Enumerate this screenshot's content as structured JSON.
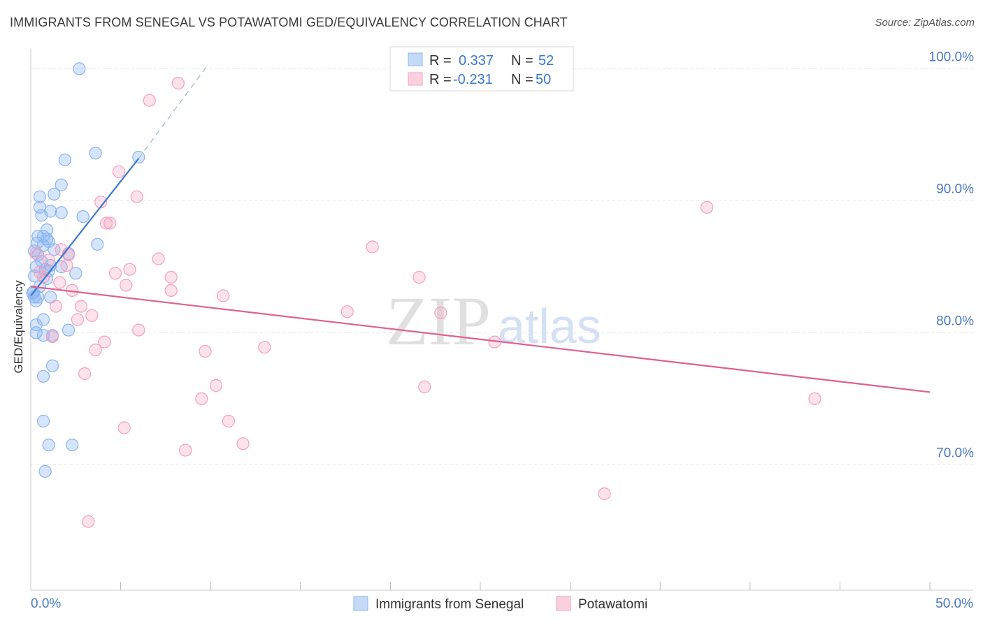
{
  "chart_data": {
    "type": "scatter",
    "title": "IMMIGRANTS FROM SENEGAL VS POTAWATOMI GED/EQUIVALENCY CORRELATION CHART",
    "source": "Source: ZipAtlas.com",
    "ylabel": "GED/Equivalency",
    "xlabel": "",
    "xlim": [
      0,
      50
    ],
    "ylim": [
      60.5,
      101.5
    ],
    "x_ticks": [
      "0.0%",
      "50.0%"
    ],
    "y_ticks": [
      {
        "value": 100,
        "label": "100.0%"
      },
      {
        "value": 90,
        "label": "90.0%"
      },
      {
        "value": 80,
        "label": "80.0%"
      },
      {
        "value": 70,
        "label": "70.0%"
      }
    ],
    "watermark": {
      "zip": "ZIP",
      "atlas": "atlas"
    },
    "legend": {
      "r_label": "R =",
      "n_label": "N =",
      "entries": [
        {
          "name": "Immigrants from Senegal",
          "r": "0.337",
          "n": "52"
        },
        {
          "name": "Potawatomi",
          "r": "-0.231",
          "n": "50"
        }
      ]
    },
    "series": [
      {
        "name": "Immigrants from Senegal",
        "color": "#8ab4f0",
        "line_color": "#3a78d0",
        "trend": {
          "x0": 0.0,
          "y0": 82.8,
          "x1": 6.0,
          "y1": 93.2,
          "x_ext": 9.8,
          "y_ext": 100.2
        },
        "points": [
          [
            2.7,
            100.0
          ],
          [
            3.6,
            93.6
          ],
          [
            6.0,
            93.3
          ],
          [
            1.9,
            93.1
          ],
          [
            1.7,
            91.2
          ],
          [
            1.3,
            90.5
          ],
          [
            0.5,
            90.3
          ],
          [
            0.5,
            89.5
          ],
          [
            1.1,
            89.2
          ],
          [
            1.7,
            89.1
          ],
          [
            0.6,
            88.9
          ],
          [
            2.9,
            88.8
          ],
          [
            0.9,
            87.8
          ],
          [
            0.4,
            87.3
          ],
          [
            0.7,
            87.3
          ],
          [
            0.9,
            87.1
          ],
          [
            1.0,
            86.9
          ],
          [
            3.7,
            86.7
          ],
          [
            0.2,
            86.2
          ],
          [
            0.7,
            86.6
          ],
          [
            2.1,
            86.0
          ],
          [
            0.4,
            85.9
          ],
          [
            1.1,
            85.1
          ],
          [
            0.3,
            85.0
          ],
          [
            1.7,
            85.0
          ],
          [
            1.0,
            84.7
          ],
          [
            2.5,
            84.5
          ],
          [
            0.9,
            84.1
          ],
          [
            0.2,
            84.3
          ],
          [
            0.5,
            83.5
          ],
          [
            0.1,
            83.0
          ],
          [
            0.2,
            82.7
          ],
          [
            0.4,
            82.7
          ],
          [
            1.1,
            82.7
          ],
          [
            0.3,
            82.4
          ],
          [
            0.7,
            81.0
          ],
          [
            2.1,
            80.2
          ],
          [
            0.3,
            80.0
          ],
          [
            0.7,
            79.8
          ],
          [
            1.2,
            79.8
          ],
          [
            0.3,
            80.6
          ],
          [
            1.2,
            77.5
          ],
          [
            0.7,
            76.7
          ],
          [
            0.7,
            73.3
          ],
          [
            1.0,
            71.5
          ],
          [
            2.3,
            71.5
          ],
          [
            0.8,
            69.5
          ],
          [
            0.15,
            83.1
          ],
          [
            0.6,
            85.4
          ],
          [
            1.3,
            86.3
          ],
          [
            0.35,
            86.8
          ],
          [
            0.8,
            84.8
          ]
        ]
      },
      {
        "name": "Potawatomi",
        "color": "#f4a0bc",
        "line_color": "#e06090",
        "trend": {
          "x0": 0.0,
          "y0": 83.5,
          "x1": 50.0,
          "y1": 75.5
        },
        "points": [
          [
            8.2,
            98.9
          ],
          [
            6.6,
            97.6
          ],
          [
            4.9,
            92.2
          ],
          [
            5.9,
            90.3
          ],
          [
            3.9,
            89.9
          ],
          [
            4.2,
            88.3
          ],
          [
            4.4,
            88.3
          ],
          [
            37.6,
            89.5
          ],
          [
            19.0,
            86.5
          ],
          [
            1.7,
            86.3
          ],
          [
            0.3,
            86.0
          ],
          [
            2.1,
            85.9
          ],
          [
            7.1,
            85.6
          ],
          [
            2.0,
            85.1
          ],
          [
            5.5,
            84.8
          ],
          [
            4.7,
            84.5
          ],
          [
            7.8,
            84.2
          ],
          [
            21.6,
            84.2
          ],
          [
            0.7,
            84.2
          ],
          [
            1.6,
            83.8
          ],
          [
            5.3,
            83.6
          ],
          [
            2.3,
            83.2
          ],
          [
            7.8,
            83.2
          ],
          [
            10.7,
            82.8
          ],
          [
            2.8,
            82.0
          ],
          [
            1.4,
            82.0
          ],
          [
            17.6,
            81.6
          ],
          [
            22.8,
            81.5
          ],
          [
            3.4,
            81.3
          ],
          [
            2.6,
            81.0
          ],
          [
            6.0,
            80.2
          ],
          [
            1.2,
            79.7
          ],
          [
            4.1,
            79.3
          ],
          [
            25.8,
            79.3
          ],
          [
            3.6,
            78.7
          ],
          [
            13.0,
            78.9
          ],
          [
            9.7,
            78.6
          ],
          [
            3.0,
            76.9
          ],
          [
            10.3,
            76.0
          ],
          [
            21.9,
            75.9
          ],
          [
            43.6,
            75.0
          ],
          [
            9.5,
            75.0
          ],
          [
            11.0,
            73.3
          ],
          [
            5.2,
            72.8
          ],
          [
            11.8,
            71.6
          ],
          [
            8.6,
            71.1
          ],
          [
            31.9,
            67.8
          ],
          [
            3.2,
            65.7
          ],
          [
            0.5,
            84.6
          ],
          [
            1.0,
            85.5
          ]
        ]
      }
    ]
  }
}
